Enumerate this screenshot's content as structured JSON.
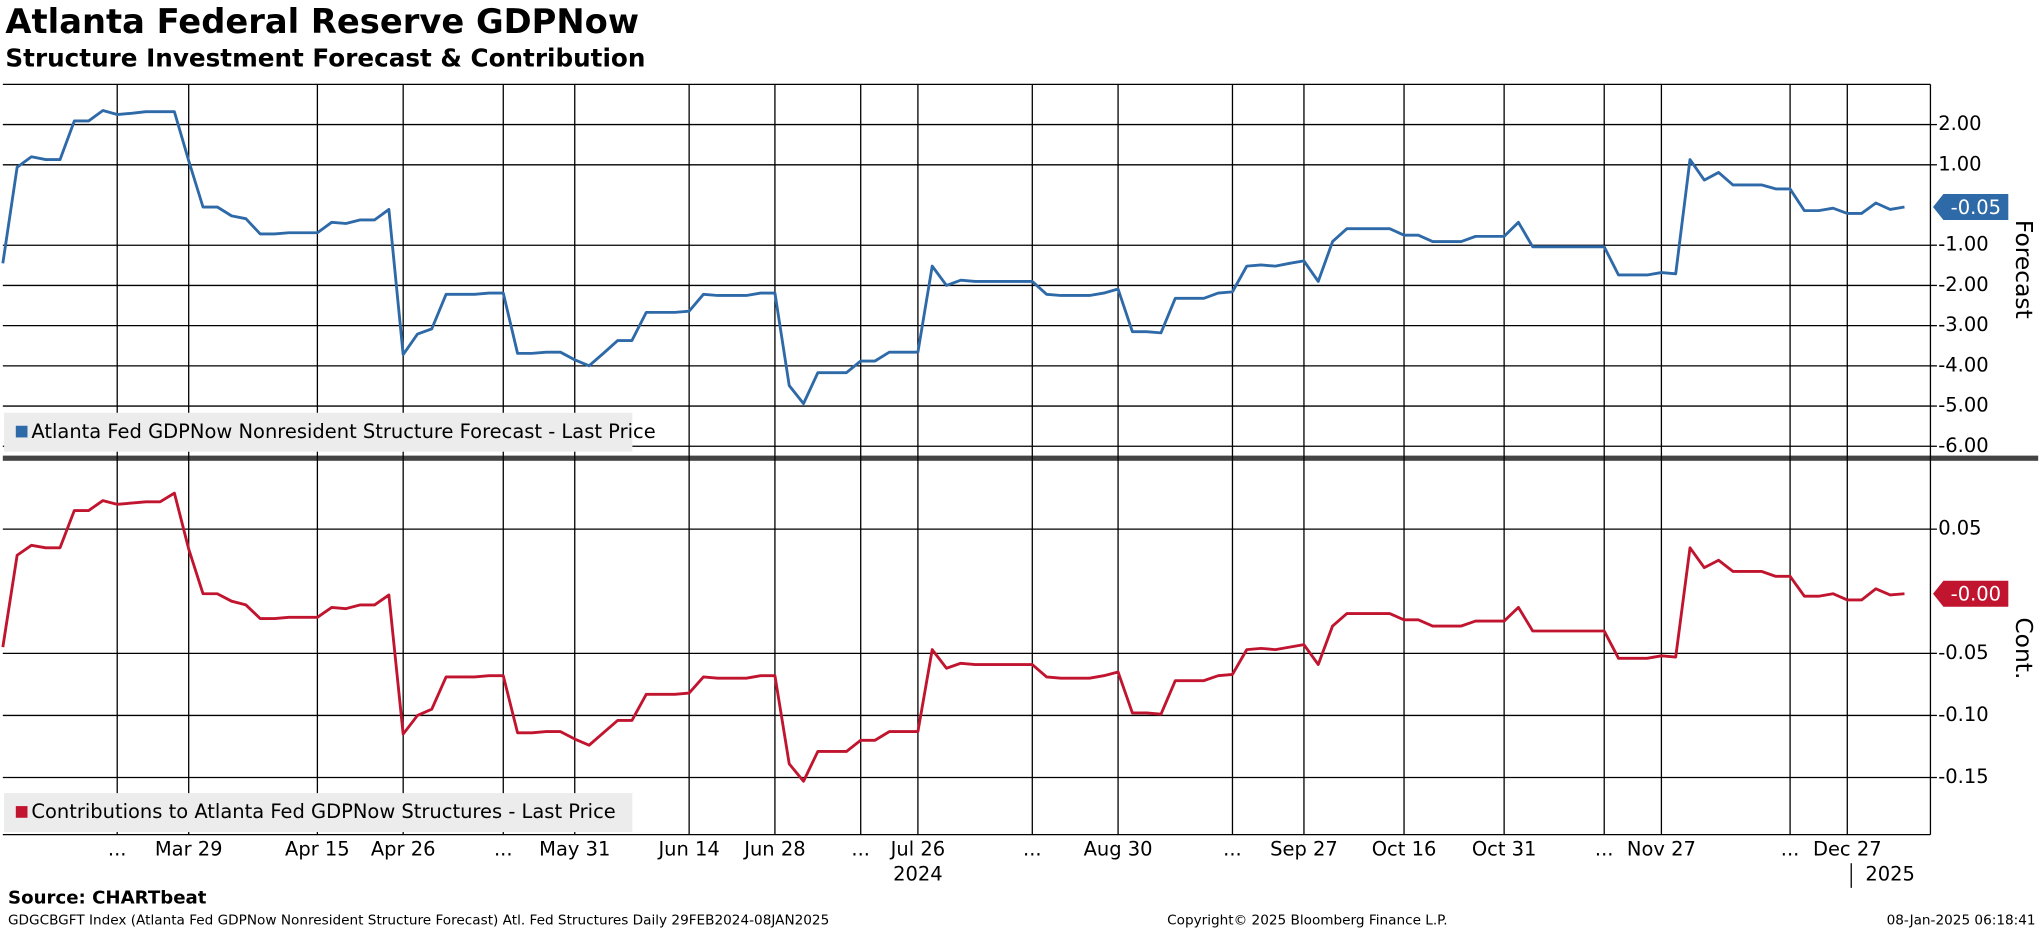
{
  "chart_data": {
    "type": "line",
    "title": "Atlanta Federal Reserve GDPNow",
    "subtitle": "Structure Investment Forecast & Contribution",
    "source": "Source: CHARTbeat",
    "footer_left": "GDGCBGFT Index (Atlanta Fed GDPNow Nonresident Structure Forecast) Atl. Fed Structures  Daily 29FEB2024-08JAN2025",
    "footer_center": "Copyright© 2025 Bloomberg Finance L.P.",
    "footer_right": "08-Jan-2025 06:18:41",
    "grid": true,
    "categories": [
      null,
      null,
      null,
      null,
      null,
      null,
      null,
      null,
      "...",
      null,
      null,
      null,
      null,
      "Mar 29",
      null,
      null,
      null,
      null,
      null,
      null,
      null,
      null,
      "Apr 15",
      null,
      null,
      null,
      null,
      null,
      "Apr 26",
      null,
      null,
      null,
      null,
      null,
      null,
      "...",
      null,
      null,
      null,
      null,
      "May 31",
      null,
      null,
      null,
      null,
      null,
      null,
      null,
      "Jun 14",
      null,
      null,
      null,
      null,
      null,
      "Jun 28",
      null,
      null,
      null,
      null,
      null,
      "...",
      null,
      null,
      null,
      "Jul 26",
      null,
      null,
      null,
      null,
      null,
      null,
      null,
      "...",
      null,
      null,
      null,
      null,
      null,
      "Aug 30",
      null,
      null,
      null,
      null,
      null,
      null,
      null,
      "...",
      null,
      null,
      null,
      null,
      "Sep 27",
      null,
      null,
      null,
      null,
      null,
      null,
      "Oct 16",
      null,
      null,
      null,
      null,
      null,
      null,
      "Oct 31",
      null,
      null,
      null,
      null,
      null,
      null,
      "...",
      null,
      null,
      null,
      "Nov 27",
      null,
      null,
      null,
      null,
      null,
      null,
      null,
      null,
      "...",
      null,
      null,
      null,
      "Dec 27",
      null,
      null,
      null,
      null
    ],
    "year_labels": [
      null,
      null,
      null,
      null,
      null,
      null,
      null,
      null,
      null,
      null,
      null,
      null,
      null,
      null,
      null,
      null,
      null,
      null,
      null,
      null,
      null,
      null,
      null,
      null,
      null,
      null,
      null,
      null,
      null,
      null,
      null,
      null,
      null,
      null,
      null,
      null,
      null,
      null,
      null,
      null,
      null,
      null,
      null,
      null,
      null,
      null,
      null,
      null,
      null,
      null,
      null,
      null,
      null,
      null,
      null,
      null,
      null,
      null,
      null,
      null,
      null,
      null,
      null,
      null,
      "2024",
      null,
      null,
      null,
      null,
      null,
      null,
      null,
      null,
      null,
      null,
      null,
      null,
      null,
      null,
      null,
      null,
      null,
      null,
      null,
      null,
      null,
      null,
      null,
      null,
      null,
      null,
      null,
      null,
      null,
      null,
      null,
      null,
      null,
      null,
      null,
      null,
      null,
      null,
      null,
      null,
      null,
      null,
      null,
      null,
      null,
      null,
      null,
      null,
      null,
      null,
      null,
      null,
      null,
      null,
      null,
      null,
      null,
      null,
      null,
      null,
      null,
      null,
      null,
      null,
      null,
      null,
      null,
      "2025",
      null
    ],
    "panels": [
      {
        "ylabel": "Forecast",
        "ylim": [
          -6.2,
          3.0
        ],
        "yticks": [
          {
            "value": 2,
            "label": "2.00"
          },
          {
            "value": 1,
            "label": "1.00"
          },
          {
            "value": -1,
            "label": "-1.00"
          },
          {
            "value": -2,
            "label": "-2.00"
          },
          {
            "value": -3,
            "label": "-3.00"
          },
          {
            "value": -4,
            "label": "-4.00"
          },
          {
            "value": -5,
            "label": "-5.00"
          },
          {
            "value": -6,
            "label": "-6.00"
          }
        ],
        "series": [
          {
            "name": "Atlanta Fed GDPNow Nonresident Structure Forecast - Last Price",
            "color": "#2e69a8",
            "values": [
              -1.45,
              0.94,
              1.2,
              1.13,
              1.13,
              2.09,
              2.09,
              2.35,
              2.25,
              2.28,
              2.32,
              2.32,
              2.32,
              1.1,
              -0.05,
              -0.05,
              -0.27,
              -0.34,
              -0.72,
              -0.72,
              -0.69,
              -0.69,
              -0.69,
              -0.43,
              -0.46,
              -0.37,
              -0.37,
              -0.11,
              -3.72,
              -3.21,
              -3.08,
              -2.22,
              -2.22,
              -2.22,
              -2.19,
              -2.19,
              -3.69,
              -3.69,
              -3.66,
              -3.66,
              -3.85,
              -4.0,
              -3.69,
              -3.37,
              -3.37,
              -2.67,
              -2.67,
              -2.67,
              -2.64,
              -2.22,
              -2.25,
              -2.25,
              -2.25,
              -2.19,
              -2.19,
              -4.49,
              -4.94,
              -4.17,
              -4.17,
              -4.17,
              -3.88,
              -3.88,
              -3.66,
              -3.66,
              -3.66,
              -1.52,
              -2.0,
              -1.87,
              -1.9,
              -1.9,
              -1.9,
              -1.9,
              -1.9,
              -2.22,
              -2.25,
              -2.25,
              -2.25,
              -2.19,
              -2.09,
              -3.15,
              -3.15,
              -3.18,
              -2.32,
              -2.32,
              -2.32,
              -2.19,
              -2.16,
              -1.52,
              -1.49,
              -1.52,
              -1.45,
              -1.39,
              -1.9,
              -0.91,
              -0.59,
              -0.59,
              -0.59,
              -0.59,
              -0.75,
              -0.75,
              -0.91,
              -0.91,
              -0.91,
              -0.78,
              -0.78,
              -0.78,
              -0.43,
              -1.04,
              -1.04,
              -1.04,
              -1.04,
              -1.04,
              -1.04,
              -1.74,
              -1.74,
              -1.74,
              -1.68,
              -1.71,
              1.13,
              0.62,
              0.81,
              0.5,
              0.5,
              0.5,
              0.4,
              0.4,
              -0.14,
              -0.14,
              -0.08,
              -0.21,
              -0.21,
              0.05,
              -0.11,
              -0.05
            ],
            "value_labels": [
              null,
              null,
              null,
              null,
              null,
              null,
              null,
              null,
              null,
              null,
              null,
              null,
              null,
              null,
              null,
              null,
              null,
              null,
              null,
              null,
              null,
              null,
              null,
              null,
              null,
              null,
              null,
              null,
              null,
              null,
              null,
              null,
              null,
              null,
              null,
              null,
              null,
              null,
              null,
              null,
              null,
              null,
              null,
              null,
              null,
              null,
              null,
              null,
              null,
              null,
              null,
              null,
              null,
              null,
              null,
              null,
              null,
              null,
              null,
              null,
              null,
              null,
              null,
              null,
              null,
              null,
              null,
              null,
              null,
              null,
              null,
              null,
              null,
              null,
              null,
              null,
              null,
              null,
              null,
              null,
              null,
              null,
              null,
              null,
              null,
              null,
              null,
              null,
              null,
              null,
              null,
              null,
              null,
              null,
              null,
              null,
              null,
              null,
              null,
              null,
              null,
              null,
              null,
              null,
              null,
              null,
              null,
              null,
              null,
              null,
              null,
              null,
              null,
              null,
              null,
              null,
              null,
              null,
              null,
              null,
              null,
              null,
              null,
              null,
              null,
              null,
              null,
              null,
              null,
              null,
              null,
              null,
              null,
              "-0.05"
            ]
          }
        ]
      },
      {
        "ylabel": "Cont.",
        "ylim": [
          -0.196,
          0.104
        ],
        "yticks": [
          {
            "value": 0.05,
            "label": "0.05"
          },
          {
            "value": -0.05,
            "label": "-0.05"
          },
          {
            "value": -0.1,
            "label": "-0.10"
          },
          {
            "value": -0.15,
            "label": "-0.15"
          }
        ],
        "series": [
          {
            "name": "Contributions to Atlanta Fed GDPNow Structures - Last Price",
            "color": "#c0142f",
            "values": [
              -0.045,
              0.029,
              0.037,
              0.035,
              0.035,
              0.065,
              0.065,
              0.073,
              0.07,
              0.071,
              0.072,
              0.072,
              0.079,
              0.034,
              -0.002,
              -0.002,
              -0.008,
              -0.011,
              -0.022,
              -0.022,
              -0.021,
              -0.021,
              -0.021,
              -0.013,
              -0.014,
              -0.011,
              -0.011,
              -0.003,
              -0.115,
              -0.1,
              -0.095,
              -0.069,
              -0.069,
              -0.069,
              -0.068,
              -0.068,
              -0.114,
              -0.114,
              -0.113,
              -0.113,
              -0.119,
              -0.124,
              -0.114,
              -0.104,
              -0.104,
              -0.083,
              -0.083,
              -0.083,
              -0.082,
              -0.069,
              -0.07,
              -0.07,
              -0.07,
              -0.068,
              -0.068,
              -0.139,
              -0.153,
              -0.129,
              -0.129,
              -0.129,
              -0.12,
              -0.12,
              -0.113,
              -0.113,
              -0.113,
              -0.047,
              -0.062,
              -0.058,
              -0.059,
              -0.059,
              -0.059,
              -0.059,
              -0.059,
              -0.069,
              -0.07,
              -0.07,
              -0.07,
              -0.068,
              -0.065,
              -0.098,
              -0.098,
              -0.099,
              -0.072,
              -0.072,
              -0.072,
              -0.068,
              -0.067,
              -0.047,
              -0.046,
              -0.047,
              -0.045,
              -0.043,
              -0.059,
              -0.028,
              -0.018,
              -0.018,
              -0.018,
              -0.018,
              -0.023,
              -0.023,
              -0.028,
              -0.028,
              -0.028,
              -0.024,
              -0.024,
              -0.024,
              -0.013,
              -0.032,
              -0.032,
              -0.032,
              -0.032,
              -0.032,
              -0.032,
              -0.054,
              -0.054,
              -0.054,
              -0.052,
              -0.053,
              0.035,
              0.019,
              0.025,
              0.016,
              0.016,
              0.016,
              0.012,
              0.012,
              -0.004,
              -0.004,
              -0.002,
              -0.007,
              -0.007,
              0.002,
              -0.003,
              -0.002
            ],
            "value_labels": [
              null,
              null,
              null,
              null,
              null,
              null,
              null,
              null,
              null,
              null,
              null,
              null,
              null,
              null,
              null,
              null,
              null,
              null,
              null,
              null,
              null,
              null,
              null,
              null,
              null,
              null,
              null,
              null,
              null,
              null,
              null,
              null,
              null,
              null,
              null,
              null,
              null,
              null,
              null,
              null,
              null,
              null,
              null,
              null,
              null,
              null,
              null,
              null,
              null,
              null,
              null,
              null,
              null,
              null,
              null,
              null,
              null,
              null,
              null,
              null,
              null,
              null,
              null,
              null,
              null,
              null,
              null,
              null,
              null,
              null,
              null,
              null,
              null,
              null,
              null,
              null,
              null,
              null,
              null,
              null,
              null,
              null,
              null,
              null,
              null,
              null,
              null,
              null,
              null,
              null,
              null,
              null,
              null,
              null,
              null,
              null,
              null,
              null,
              null,
              null,
              null,
              null,
              null,
              null,
              null,
              null,
              null,
              null,
              null,
              null,
              null,
              null,
              null,
              null,
              null,
              null,
              null,
              null,
              null,
              null,
              null,
              null,
              null,
              null,
              null,
              null,
              null,
              null,
              null,
              null,
              null,
              null,
              null,
              "-0.00"
            ]
          }
        ]
      }
    ]
  }
}
